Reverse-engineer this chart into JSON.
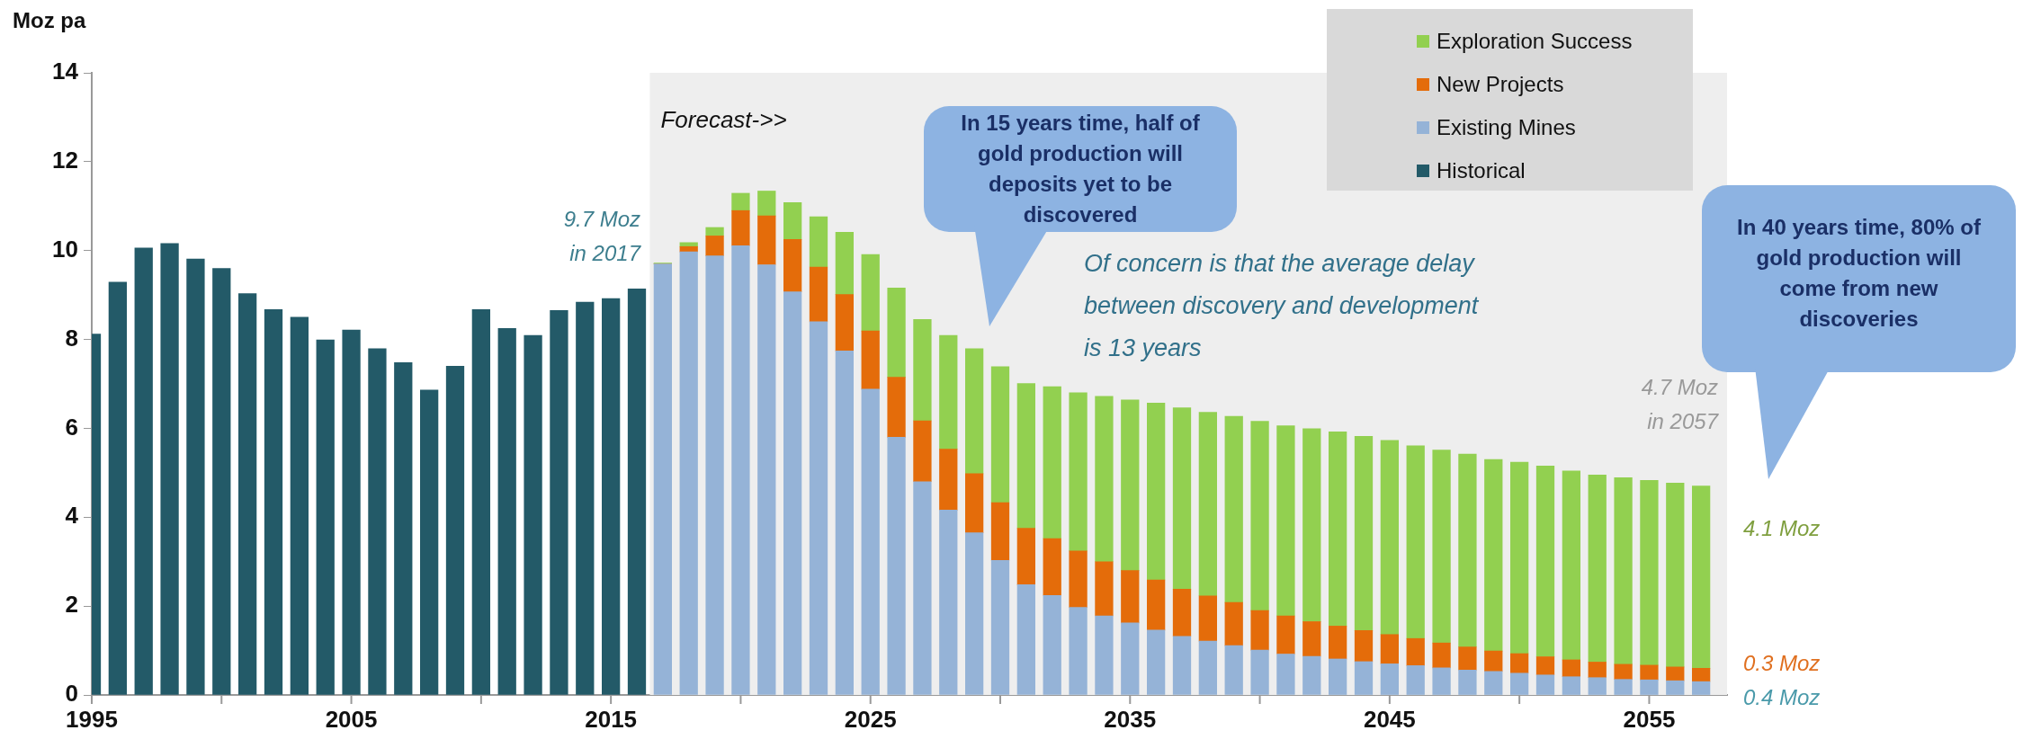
{
  "chart_data": {
    "type": "bar",
    "stacked": true,
    "ylabel": "Moz pa",
    "x": [
      1995,
      1996,
      1997,
      1998,
      1999,
      2000,
      2001,
      2002,
      2003,
      2004,
      2005,
      2006,
      2007,
      2008,
      2009,
      2010,
      2011,
      2012,
      2013,
      2014,
      2015,
      2016,
      2017,
      2018,
      2019,
      2020,
      2021,
      2022,
      2023,
      2024,
      2025,
      2026,
      2027,
      2028,
      2029,
      2030,
      2031,
      2032,
      2033,
      2034,
      2035,
      2036,
      2037,
      2038,
      2039,
      2040,
      2041,
      2042,
      2043,
      2044,
      2045,
      2046,
      2047,
      2048,
      2049,
      2050,
      2051,
      2052,
      2053,
      2054,
      2055,
      2056,
      2057
    ],
    "series": [
      {
        "name": "Historical",
        "color": "#235a68",
        "values": [
          8.12,
          9.29,
          10.06,
          10.16,
          9.81,
          9.6,
          9.03,
          8.67,
          8.5,
          7.99,
          8.21,
          7.79,
          7.48,
          6.86,
          7.4,
          8.67,
          8.25,
          8.09,
          8.65,
          8.84,
          8.92,
          9.14,
          null,
          null,
          null,
          null,
          null,
          null,
          null,
          null,
          null,
          null,
          null,
          null,
          null,
          null,
          null,
          null,
          null,
          null,
          null,
          null,
          null,
          null,
          null,
          null,
          null,
          null,
          null,
          null,
          null,
          null,
          null,
          null,
          null,
          null,
          null,
          null,
          null,
          null,
          null,
          null,
          null
        ]
      },
      {
        "name": "Existing Mines",
        "color": "#95b3d7",
        "values": [
          null,
          null,
          null,
          null,
          null,
          null,
          null,
          null,
          null,
          null,
          null,
          null,
          null,
          null,
          null,
          null,
          null,
          null,
          null,
          null,
          null,
          null,
          9.7,
          9.97,
          9.88,
          10.11,
          9.68,
          9.07,
          8.4,
          7.74,
          6.88,
          5.8,
          4.8,
          4.16,
          3.65,
          3.03,
          2.48,
          2.24,
          1.97,
          1.78,
          1.62,
          1.46,
          1.32,
          1.21,
          1.11,
          1.01,
          0.92,
          0.87,
          0.81,
          0.75,
          0.7,
          0.66,
          0.61,
          0.56,
          0.53,
          0.49,
          0.45,
          0.41,
          0.39,
          0.35,
          0.34,
          0.32,
          0.3
        ]
      },
      {
        "name": "New Projects",
        "color": "#e46c0a",
        "values": [
          null,
          null,
          null,
          null,
          null,
          null,
          null,
          null,
          null,
          null,
          null,
          null,
          null,
          null,
          null,
          null,
          null,
          null,
          null,
          null,
          null,
          null,
          0,
          0.12,
          0.45,
          0.79,
          1.1,
          1.18,
          1.23,
          1.27,
          1.31,
          1.35,
          1.37,
          1.37,
          1.33,
          1.3,
          1.27,
          1.28,
          1.27,
          1.22,
          1.18,
          1.13,
          1.06,
          1.02,
          0.97,
          0.89,
          0.86,
          0.78,
          0.74,
          0.7,
          0.66,
          0.61,
          0.56,
          0.52,
          0.46,
          0.44,
          0.41,
          0.38,
          0.35,
          0.34,
          0.33,
          0.31,
          0.3
        ]
      },
      {
        "name": "Exploration Success",
        "color": "#92d050",
        "values": [
          null,
          null,
          null,
          null,
          null,
          null,
          null,
          null,
          null,
          null,
          null,
          null,
          null,
          null,
          null,
          null,
          null,
          null,
          null,
          null,
          null,
          null,
          0.02,
          0.09,
          0.19,
          0.39,
          0.56,
          0.83,
          1.13,
          1.4,
          1.72,
          2.01,
          2.28,
          2.56,
          2.81,
          3.06,
          3.26,
          3.42,
          3.56,
          3.72,
          3.84,
          3.98,
          4.08,
          4.13,
          4.19,
          4.26,
          4.28,
          4.34,
          4.37,
          4.37,
          4.37,
          4.34,
          4.34,
          4.34,
          4.31,
          4.31,
          4.29,
          4.25,
          4.21,
          4.2,
          4.16,
          4.14,
          4.1
        ]
      }
    ],
    "xlim": [
      1995,
      2058
    ],
    "xticks": [
      1995,
      {
        "value": 2000,
        "label": null
      },
      2005,
      {
        "value": 2010,
        "label": null
      },
      2015,
      {
        "value": 2020,
        "label": null
      },
      2025,
      {
        "value": 2030,
        "label": null
      },
      2035,
      {
        "value": 2040,
        "label": null
      },
      2045,
      {
        "value": 2050,
        "label": null
      },
      2055
    ],
    "ylim": [
      0,
      14
    ],
    "yticks": [
      0,
      2,
      4,
      6,
      8,
      10,
      12,
      14
    ],
    "bands": [
      {
        "axis": "x",
        "from": 2016.5,
        "to": 2058,
        "label": "Forecast->>",
        "color": "#eeeeee"
      }
    ],
    "legend": "top right",
    "annotations": [
      "9.7 Moz in 2017",
      "4.7 Moz in 2057",
      "4.1 Moz",
      "0.3 Moz",
      "0.4 Moz",
      "In 15 years time, half of gold production will deposits yet to be discovered",
      "In 40 years time, 80% of gold production will come from new discoveries",
      "Of concern is that the average delay between discovery and development is 13 years"
    ]
  }
}
